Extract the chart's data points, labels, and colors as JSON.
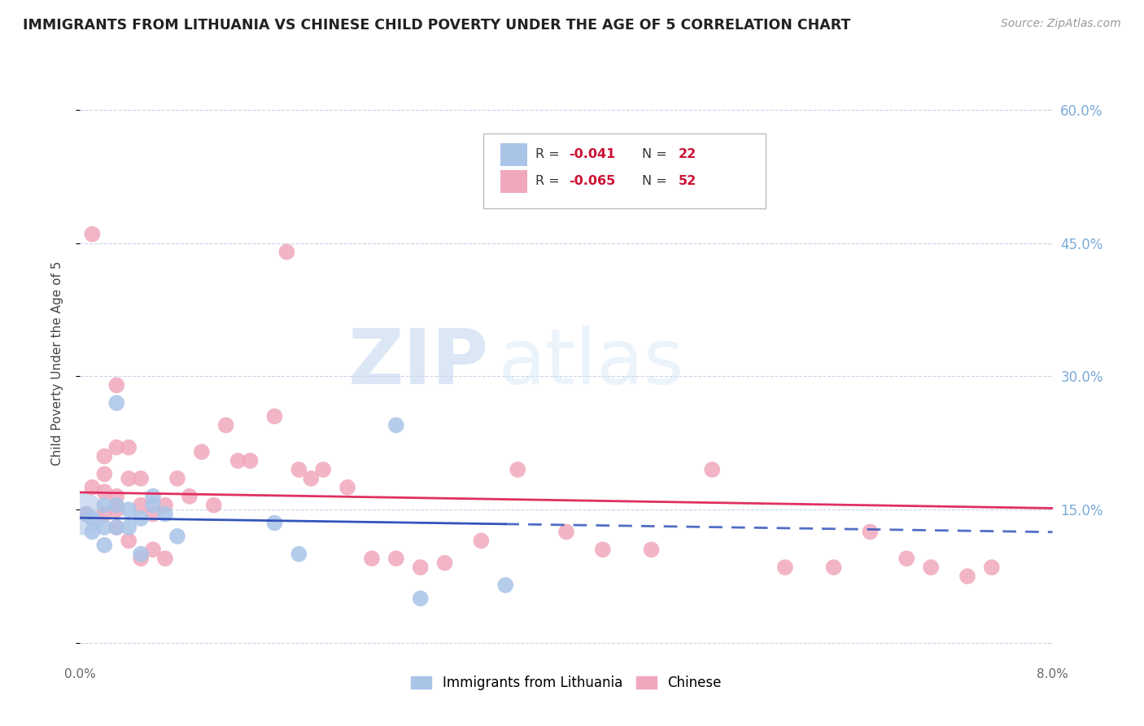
{
  "title": "IMMIGRANTS FROM LITHUANIA VS CHINESE CHILD POVERTY UNDER THE AGE OF 5 CORRELATION CHART",
  "source": "Source: ZipAtlas.com",
  "ylabel": "Child Poverty Under the Age of 5",
  "xlim": [
    0.0,
    0.08
  ],
  "ylim": [
    -0.02,
    0.65
  ],
  "yticks": [
    0.0,
    0.15,
    0.3,
    0.45,
    0.6
  ],
  "ytick_labels": [
    "",
    "15.0%",
    "30.0%",
    "45.0%",
    "60.0%"
  ],
  "xtick_labels": [
    "0.0%",
    "",
    "",
    "",
    "",
    "",
    "",
    "",
    "8.0%"
  ],
  "legend_labels_bottom": [
    "Immigrants from Lithuania",
    "Chinese"
  ],
  "lithuania_R": -0.041,
  "lithuania_N": 22,
  "chinese_R": -0.065,
  "chinese_N": 52,
  "lithuania_color": "#aac4e8",
  "chinese_color": "#f0a8bc",
  "lithuania_line_color": "#3355bb",
  "chinese_line_color": "#e03060",
  "background_color": "#ffffff",
  "grid_color": "#c8d4e8",
  "right_axis_color": "#7aaad8",
  "title_color": "#222222",
  "lith_line_x_end": 0.035,
  "lithuania_x": [
    0.0005,
    0.001,
    0.001,
    0.002,
    0.002,
    0.002,
    0.003,
    0.003,
    0.003,
    0.004,
    0.004,
    0.005,
    0.005,
    0.006,
    0.006,
    0.007,
    0.008,
    0.016,
    0.018,
    0.026,
    0.028,
    0.035
  ],
  "lithuania_y": [
    0.145,
    0.14,
    0.125,
    0.155,
    0.13,
    0.11,
    0.27,
    0.155,
    0.13,
    0.15,
    0.13,
    0.14,
    0.1,
    0.165,
    0.155,
    0.145,
    0.12,
    0.135,
    0.1,
    0.245,
    0.05,
    0.065
  ],
  "chinese_x": [
    0.0005,
    0.001,
    0.001,
    0.002,
    0.002,
    0.002,
    0.002,
    0.003,
    0.003,
    0.003,
    0.003,
    0.003,
    0.004,
    0.004,
    0.004,
    0.005,
    0.005,
    0.005,
    0.006,
    0.006,
    0.007,
    0.007,
    0.008,
    0.009,
    0.01,
    0.011,
    0.012,
    0.013,
    0.014,
    0.016,
    0.017,
    0.018,
    0.019,
    0.02,
    0.022,
    0.024,
    0.026,
    0.028,
    0.03,
    0.033,
    0.036,
    0.04,
    0.043,
    0.047,
    0.052,
    0.058,
    0.062,
    0.065,
    0.068,
    0.07,
    0.073,
    0.075
  ],
  "chinese_y": [
    0.145,
    0.46,
    0.175,
    0.21,
    0.19,
    0.17,
    0.145,
    0.29,
    0.22,
    0.165,
    0.15,
    0.13,
    0.22,
    0.185,
    0.115,
    0.185,
    0.155,
    0.095,
    0.145,
    0.105,
    0.155,
    0.095,
    0.185,
    0.165,
    0.215,
    0.155,
    0.245,
    0.205,
    0.205,
    0.255,
    0.44,
    0.195,
    0.185,
    0.195,
    0.175,
    0.095,
    0.095,
    0.085,
    0.09,
    0.115,
    0.195,
    0.125,
    0.105,
    0.105,
    0.195,
    0.085,
    0.085,
    0.125,
    0.095,
    0.085,
    0.075,
    0.085
  ]
}
